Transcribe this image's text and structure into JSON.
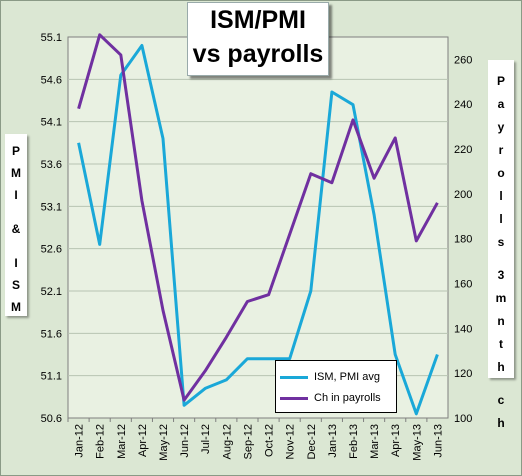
{
  "chart_data": {
    "type": "line",
    "title_lines": [
      "ISM/PMI",
      "vs payrolls"
    ],
    "left_axis_label": "PMI & ISM",
    "right_axis_label": [
      "Payrolls",
      "3mnth",
      "ch"
    ],
    "categories": [
      "Jan-12",
      "Feb-12",
      "Mar-12",
      "Apr-12",
      "May-12",
      "Jun-12",
      "Jul-12",
      "Aug-12",
      "Sep-12",
      "Oct-12",
      "Nov-12",
      "Dec-12",
      "Jan-13",
      "Feb-13",
      "Mar-13",
      "Apr-13",
      "May-13",
      "Jun-13"
    ],
    "left_axis": {
      "min": 50.6,
      "max": 55.1,
      "ticks": [
        "55.1",
        "54.6",
        "54.1",
        "53.6",
        "53.1",
        "52.6",
        "52.1",
        "51.6",
        "51.1",
        "50.6"
      ]
    },
    "right_axis": {
      "min": 100,
      "max": 270,
      "ticks": [
        "260",
        "240",
        "220",
        "200",
        "180",
        "160",
        "140",
        "120",
        "100"
      ]
    },
    "series": [
      {
        "name": "ISM, PMI avg",
        "axis": "left",
        "color": "#1aa8d8",
        "values": [
          53.85,
          52.65,
          54.65,
          55.0,
          53.9,
          50.75,
          50.95,
          51.05,
          51.3,
          51.3,
          51.3,
          52.1,
          54.45,
          54.3,
          53.0,
          51.35,
          50.65,
          51.35
        ]
      },
      {
        "name": "Ch in payrolls",
        "axis": "right",
        "color": "#7030a0",
        "values": [
          238,
          271,
          262,
          197,
          148,
          108,
          121,
          136,
          152,
          155,
          182,
          209,
          205,
          233,
          207,
          225,
          179,
          196
        ]
      }
    ],
    "grid": true,
    "legend_position": "bottom-right"
  }
}
